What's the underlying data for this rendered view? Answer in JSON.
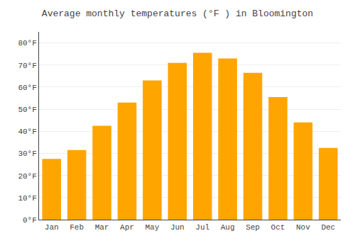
{
  "chart_data": {
    "type": "bar",
    "title": "Average monthly temperatures (°F ) in Bloomington",
    "categories": [
      "Jan",
      "Feb",
      "Mar",
      "Apr",
      "May",
      "Jun",
      "Jul",
      "Aug",
      "Sep",
      "Oct",
      "Nov",
      "Dec"
    ],
    "values": [
      27.5,
      31.5,
      42.5,
      53,
      63,
      71,
      75.5,
      73,
      66.5,
      55.5,
      44,
      32.5
    ],
    "color": "#FFA500",
    "ylim": [
      0,
      85
    ],
    "yticks": [
      {
        "value": 0,
        "label": "0°F"
      },
      {
        "value": 10,
        "label": "10°F"
      },
      {
        "value": 20,
        "label": "20°F"
      },
      {
        "value": 30,
        "label": "30°F"
      },
      {
        "value": 40,
        "label": "40°F"
      },
      {
        "value": 50,
        "label": "50°F"
      },
      {
        "value": 60,
        "label": "60°F"
      },
      {
        "value": 70,
        "label": "70°F"
      },
      {
        "value": 80,
        "label": "80°F"
      }
    ],
    "grid": true
  }
}
